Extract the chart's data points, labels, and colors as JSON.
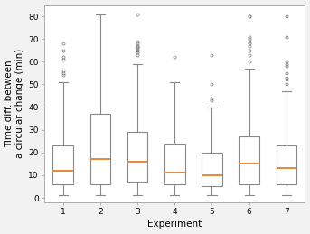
{
  "title": "",
  "xlabel": "Experiment",
  "ylabel": "Time diff. between\na circular change (min)",
  "xlim": [
    0.5,
    7.5
  ],
  "ylim": [
    -2,
    85
  ],
  "yticks": [
    0,
    10,
    20,
    30,
    40,
    50,
    60,
    70,
    80
  ],
  "xticks": [
    1,
    2,
    3,
    4,
    5,
    6,
    7
  ],
  "boxes": [
    {
      "label": 1,
      "q1": 6,
      "median": 12,
      "q3": 23,
      "whisker_low": 1,
      "whisker_high": 51,
      "fliers": [
        54,
        55,
        56,
        61,
        62,
        65,
        68
      ]
    },
    {
      "label": 2,
      "q1": 6,
      "median": 17,
      "q3": 37,
      "whisker_low": 1,
      "whisker_high": 81,
      "fliers": []
    },
    {
      "label": 3,
      "q1": 7,
      "median": 16,
      "q3": 29,
      "whisker_low": 1,
      "whisker_high": 59,
      "fliers": [
        63,
        64,
        65,
        65,
        66,
        66,
        67,
        67,
        68,
        69,
        81
      ]
    },
    {
      "label": 4,
      "q1": 6,
      "median": 11,
      "q3": 24,
      "whisker_low": 1,
      "whisker_high": 51,
      "fliers": [
        62
      ]
    },
    {
      "label": 5,
      "q1": 5,
      "median": 10,
      "q3": 20,
      "whisker_low": 1,
      "whisker_high": 40,
      "fliers": [
        43,
        44,
        50,
        63
      ]
    },
    {
      "label": 6,
      "q1": 6,
      "median": 15,
      "q3": 27,
      "whisker_low": 1,
      "whisker_high": 57,
      "fliers": [
        60,
        63,
        65,
        67,
        68,
        69,
        70,
        71,
        80,
        80
      ]
    },
    {
      "label": 7,
      "q1": 6,
      "median": 13,
      "q3": 23,
      "whisker_low": 1,
      "whisker_high": 47,
      "fliers": [
        50,
        52,
        53,
        55,
        58,
        59,
        60,
        71,
        80
      ]
    }
  ],
  "box_color": "#ffffff",
  "median_color": "#e8883a",
  "whisker_color": "#888888",
  "flier_color": "#888888",
  "box_width": 0.55,
  "background_color": "#f2f2f2",
  "plot_bg_color": "#ffffff",
  "tick_fontsize": 6.5,
  "label_fontsize": 7.5
}
